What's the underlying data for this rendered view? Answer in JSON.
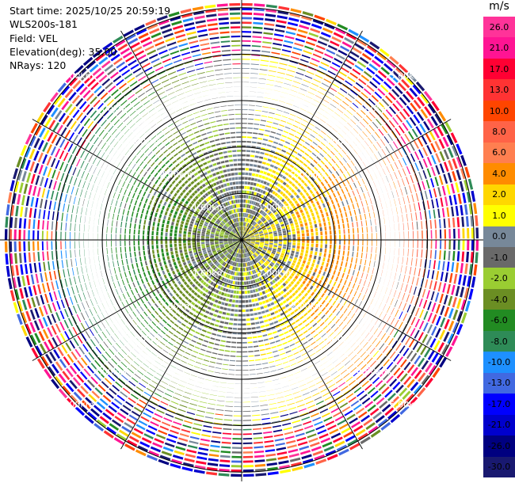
{
  "info": {
    "start_time": "Start time: 2025/10/25 20:59:19",
    "station": "WLS200s-181",
    "field": "Field: VEL",
    "elevation": "Elevation(deg): 35.00",
    "nrays": "NRays: 120"
  },
  "colorbar": {
    "unit": "m/s",
    "labels": [
      "26.0",
      "21.0",
      "17.0",
      "13.0",
      "10.0",
      "8.0",
      "6.0",
      "4.0",
      "2.0",
      "1.0",
      "0.0",
      "-1.0",
      "-2.0",
      "-4.0",
      "-6.0",
      "-8.0",
      "-10.0",
      "-13.0",
      "-17.0",
      "-21.0",
      "-26.0",
      "-30.0"
    ],
    "colors": [
      "#ff3399",
      "#ff1493",
      "#ff0033",
      "#ff3333",
      "#ff4500",
      "#ff6347",
      "#ff7f50",
      "#ff8c00",
      "#ffd700",
      "#ffff00",
      "#778899",
      "#696969",
      "#9acd32",
      "#6b8e23",
      "#228b22",
      "#2e8b57",
      "#1e90ff",
      "#4169e1",
      "#0000ff",
      "#0000cd",
      "#000080",
      "#191970"
    ]
  },
  "chart_data": {
    "type": "ppi",
    "field": "VEL",
    "unit": "m/s",
    "n_rays": 120,
    "elevation_deg": 35.0,
    "range_rings_km": [
      1.0,
      2.0,
      3.0,
      4.0,
      5.0
    ],
    "range_labels": [
      "1.00km",
      "2.00km",
      "3.00km",
      "4.00km",
      "5.00km"
    ],
    "azimuth_lines_deg": [
      0,
      30,
      60,
      90,
      120,
      150,
      180,
      210,
      240,
      270,
      300,
      330
    ],
    "max_range_km": 5.2,
    "velocity_pattern": {
      "east_sector": "positive 2.0 to 8.0",
      "west_sector": "negative -1.0 to -6.0",
      "near_center": "mixed -2.0 to 4.0",
      "outer_ranges": "noise -30.0 to 26.0"
    }
  }
}
